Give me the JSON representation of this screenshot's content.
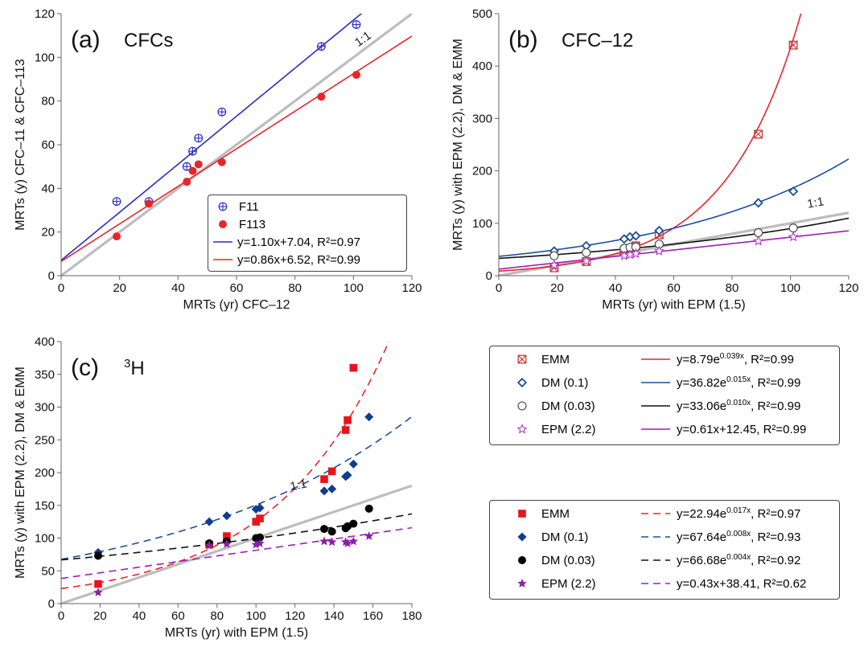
{
  "chart_data": [
    {
      "type": "scatter",
      "panel_label": "(a)",
      "title": "CFCs",
      "xlabel": "MRTs (yr) CFC–12",
      "ylabel": "MRTs (y) CFC–11 & CFC–113",
      "xlim": [
        0,
        120
      ],
      "ylim": [
        0,
        120
      ],
      "xticks": [
        "0",
        "20",
        "40",
        "60",
        "80",
        "100",
        "120"
      ],
      "yticks": [
        "0",
        "20",
        "40",
        "60",
        "80",
        "100",
        "120"
      ],
      "grid": false,
      "one_to_one_label": "1:1",
      "legend_position": "bottom-right",
      "series": [
        {
          "name": "F11",
          "marker": "circle-plus",
          "color": "#2b2bc4",
          "points": [
            [
              19,
              34
            ],
            [
              30,
              34
            ],
            [
              43,
              50
            ],
            [
              45,
              57
            ],
            [
              47,
              63
            ],
            [
              55,
              75
            ],
            [
              89,
              105
            ],
            [
              101,
              115
            ]
          ]
        },
        {
          "name": "F113",
          "marker": "filled-circle",
          "color": "#e8262a",
          "points": [
            [
              19,
              18
            ],
            [
              30,
              33
            ],
            [
              43,
              43
            ],
            [
              45,
              48
            ],
            [
              47,
              51
            ],
            [
              55,
              52
            ],
            [
              89,
              82
            ],
            [
              101,
              92
            ]
          ]
        }
      ],
      "fits": [
        {
          "label": "y=1.10x+7.04, R²=0.97",
          "color": "#2b2bc4",
          "kind": "linear",
          "a": 1.1,
          "b": 7.04,
          "dash": "solid"
        },
        {
          "label": "y=0.86x+6.52, R²=0.99",
          "color": "#e8262a",
          "kind": "linear",
          "a": 0.86,
          "b": 6.52,
          "dash": "solid"
        }
      ]
    },
    {
      "type": "scatter",
      "panel_label": "(b)",
      "title": "CFC–12",
      "xlabel": "MRTs (yr) with EPM (1.5)",
      "ylabel": "MRTs (y) with EPM (2.2), DM & EMM",
      "xlim": [
        0,
        120
      ],
      "ylim": [
        0,
        500
      ],
      "xticks": [
        "0",
        "20",
        "40",
        "60",
        "80",
        "100",
        "120"
      ],
      "yticks": [
        "0",
        "100",
        "200",
        "300",
        "400",
        "500"
      ],
      "grid": false,
      "one_to_one_label": "1:1",
      "legend_position": "below",
      "series": [
        {
          "name": "EMM",
          "marker": "square-x",
          "color": "#c43a3a",
          "points": [
            [
              19,
              15
            ],
            [
              30,
              27
            ],
            [
              43,
              48
            ],
            [
              45,
              52
            ],
            [
              47,
              57
            ],
            [
              55,
              78
            ],
            [
              89,
              270
            ],
            [
              101,
              440
            ]
          ]
        },
        {
          "name": "DM (0.1)",
          "marker": "open-diamond",
          "color": "#1f4e9a",
          "points": [
            [
              19,
              47
            ],
            [
              30,
              57
            ],
            [
              43,
              70
            ],
            [
              45,
              74
            ],
            [
              47,
              76
            ],
            [
              55,
              86
            ],
            [
              89,
              139
            ],
            [
              101,
              161
            ]
          ]
        },
        {
          "name": "DM (0.03)",
          "marker": "open-circle",
          "color": "#444444",
          "points": [
            [
              19,
              38
            ],
            [
              30,
              44
            ],
            [
              43,
              52
            ],
            [
              45,
              54
            ],
            [
              47,
              55
            ],
            [
              55,
              60
            ],
            [
              89,
              82
            ],
            [
              101,
              91
            ]
          ]
        },
        {
          "name": "EPM (2.2)",
          "marker": "open-star",
          "color": "#b02cc8",
          "points": [
            [
              19,
              20
            ],
            [
              30,
              28
            ],
            [
              43,
              38
            ],
            [
              45,
              40
            ],
            [
              47,
              42
            ],
            [
              55,
              47
            ],
            [
              89,
              66
            ],
            [
              101,
              74
            ]
          ]
        }
      ],
      "fits": [
        {
          "label": "y=8.79e",
          "sup": "0.039x",
          "tail": ", R²=0.99",
          "color": "#e8262a",
          "kind": "exp",
          "a": 8.79,
          "b": 0.039,
          "dash": "solid"
        },
        {
          "label": "y=36.82e",
          "sup": "0.015x",
          "tail": ", R²=0.99",
          "color": "#1f4e9a",
          "kind": "exp",
          "a": 36.82,
          "b": 0.015,
          "dash": "solid"
        },
        {
          "label": "y=33.06e",
          "sup": "0.010x",
          "tail": ", R²=0.99",
          "color": "#111111",
          "kind": "exp",
          "a": 33.06,
          "b": 0.01,
          "dash": "solid"
        },
        {
          "label": "y=0.61x+12.45, R²=0.99",
          "color": "#9b1fb8",
          "kind": "linear",
          "a": 0.61,
          "b": 12.45,
          "dash": "solid"
        }
      ]
    },
    {
      "type": "scatter",
      "panel_label": "(c)",
      "title_sup": "3",
      "title": "H",
      "xlabel": "MRTs (yr) with EPM (1.5)",
      "ylabel": "MRTs (y) with EPM (2.2), DM & EMM",
      "xlim": [
        0,
        180
      ],
      "ylim": [
        0,
        400
      ],
      "xticks": [
        "0",
        "20",
        "40",
        "60",
        "80",
        "100",
        "120",
        "140",
        "160",
        "180"
      ],
      "yticks": [
        "0",
        "50",
        "100",
        "150",
        "200",
        "250",
        "300",
        "350",
        "400"
      ],
      "grid": false,
      "one_to_one_label": "1:1",
      "legend_position": "right",
      "series": [
        {
          "name": "EMM",
          "marker": "filled-square",
          "color": "#e8141a",
          "points": [
            [
              19,
              30
            ],
            [
              76,
              90
            ],
            [
              85,
              103
            ],
            [
              100,
              125
            ],
            [
              102,
              130
            ],
            [
              135,
              190
            ],
            [
              139,
              202
            ],
            [
              146,
              265
            ],
            [
              147,
              280
            ],
            [
              150,
              360
            ]
          ]
        },
        {
          "name": "DM (0.1)",
          "marker": "filled-diamond",
          "color": "#0f3d91",
          "points": [
            [
              19,
              78
            ],
            [
              76,
              125
            ],
            [
              85,
              134
            ],
            [
              100,
              144
            ],
            [
              102,
              146
            ],
            [
              135,
              172
            ],
            [
              139,
              175
            ],
            [
              146,
              194
            ],
            [
              147,
              196
            ],
            [
              150,
              213
            ],
            [
              158,
              285
            ]
          ]
        },
        {
          "name": "DM (0.03)",
          "marker": "filled-circle",
          "color": "#000000",
          "points": [
            [
              19,
              73
            ],
            [
              76,
              92
            ],
            [
              85,
              95
            ],
            [
              100,
              100
            ],
            [
              102,
              101
            ],
            [
              135,
              114
            ],
            [
              139,
              110
            ],
            [
              146,
              115
            ],
            [
              147,
              118
            ],
            [
              150,
              122
            ],
            [
              158,
              145
            ]
          ]
        },
        {
          "name": "EPM (2.2)",
          "marker": "filled-star",
          "color": "#8a1fa8",
          "points": [
            [
              19,
              17
            ],
            [
              76,
              89
            ],
            [
              85,
              91
            ],
            [
              100,
              90
            ],
            [
              102,
              92
            ],
            [
              135,
              95
            ],
            [
              139,
              94
            ],
            [
              146,
              94
            ],
            [
              147,
              92
            ],
            [
              150,
              95
            ],
            [
              158,
              103
            ]
          ]
        }
      ],
      "fits": [
        {
          "label": "y=22.94e",
          "sup": "0.017x",
          "tail": ", R²=0.97",
          "color": "#e8262a",
          "kind": "exp",
          "a": 22.94,
          "b": 0.017,
          "dash": "dashed"
        },
        {
          "label": "y=67.64e",
          "sup": "0.008x",
          "tail": ", R²=0.93",
          "color": "#1f4e9a",
          "kind": "exp",
          "a": 67.64,
          "b": 0.008,
          "dash": "dashed"
        },
        {
          "label": "y=66.68e",
          "sup": "0.004x",
          "tail": ", R²=0.92",
          "color": "#111111",
          "kind": "exp",
          "a": 66.68,
          "b": 0.004,
          "dash": "dashed"
        },
        {
          "label": "y=0.43x+38.41, R²=0.62",
          "color": "#9b1fb8",
          "kind": "linear",
          "a": 0.43,
          "b": 38.41,
          "dash": "dashed"
        }
      ]
    }
  ]
}
